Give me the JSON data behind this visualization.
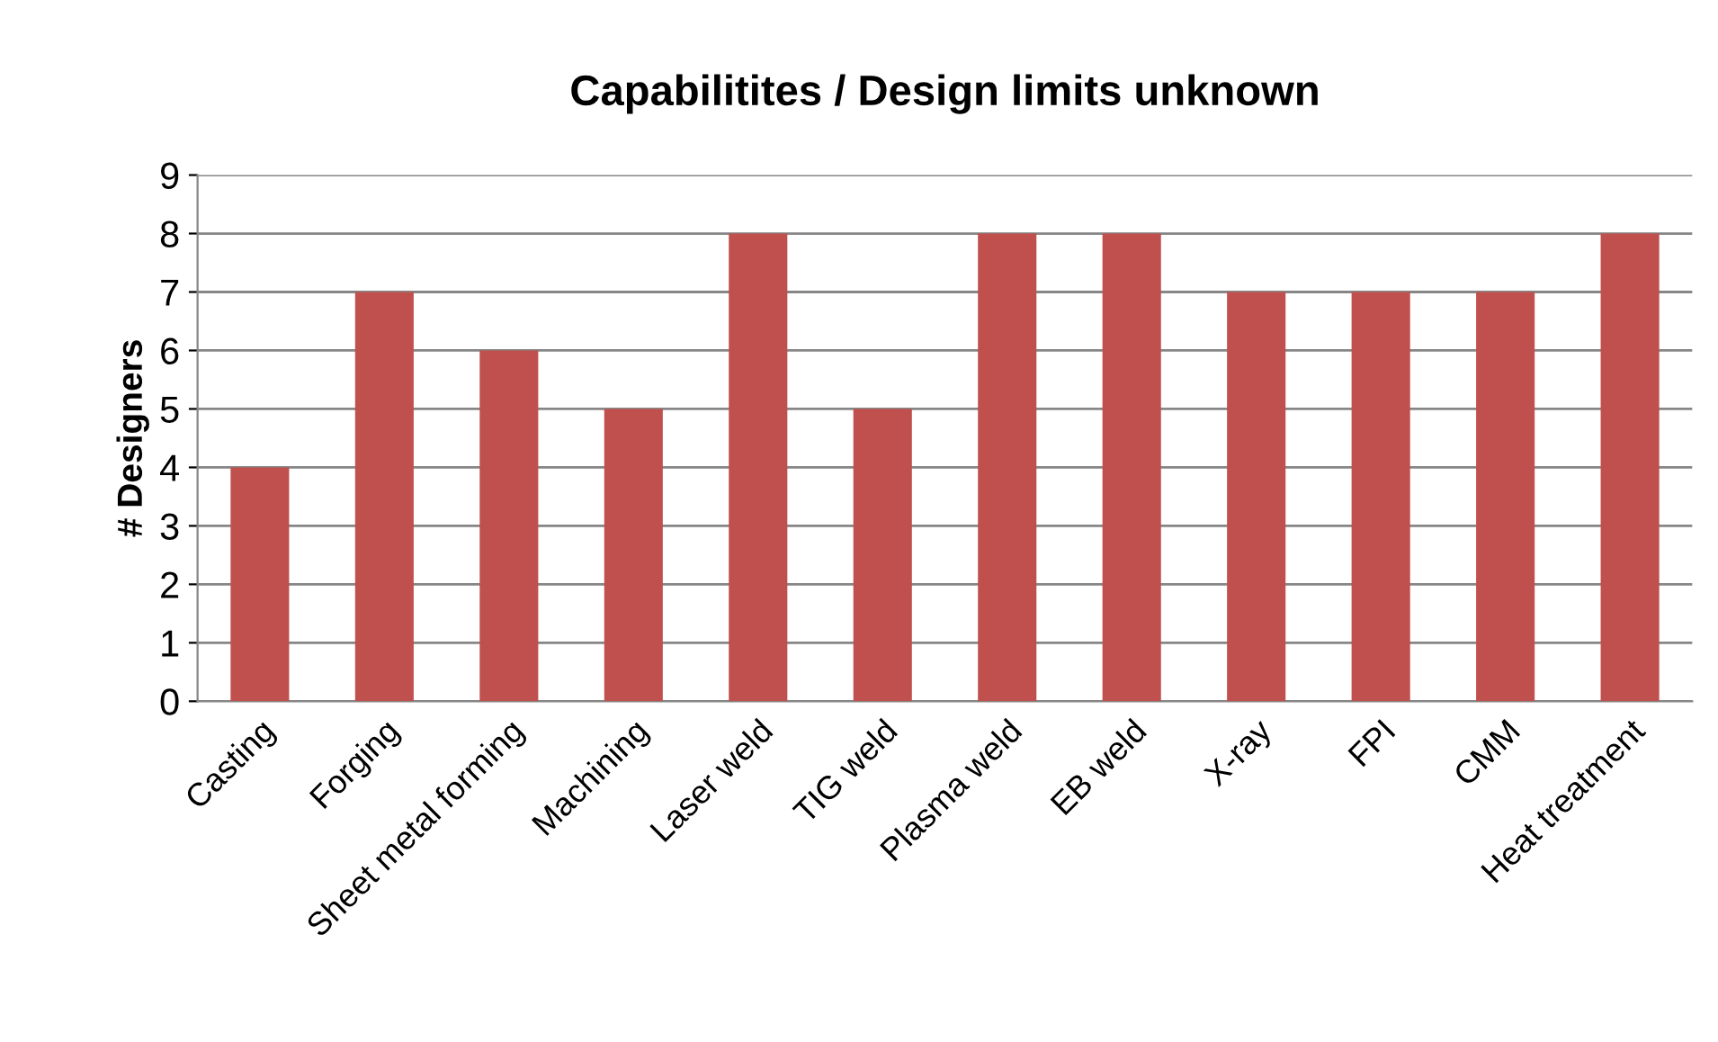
{
  "chart_data": {
    "type": "bar",
    "title": "Capabilitites / Design limits unknown",
    "ylabel": "# Designers",
    "categories": [
      "Casting",
      "Forging",
      "Sheet metal forming",
      "Machining",
      "Laser weld",
      "TIG weld",
      "Plasma weld",
      "EB weld",
      "X-ray",
      "FPI",
      "CMM",
      "Heat treatment"
    ],
    "values": [
      4,
      7,
      6,
      5,
      8,
      5,
      8,
      8,
      7,
      7,
      7,
      8
    ],
    "color": "#c0504d",
    "ylim": [
      0,
      9
    ],
    "yticks": [
      0,
      1,
      2,
      3,
      4,
      5,
      6,
      7,
      8,
      9
    ],
    "grid": "y",
    "legend": false
  }
}
